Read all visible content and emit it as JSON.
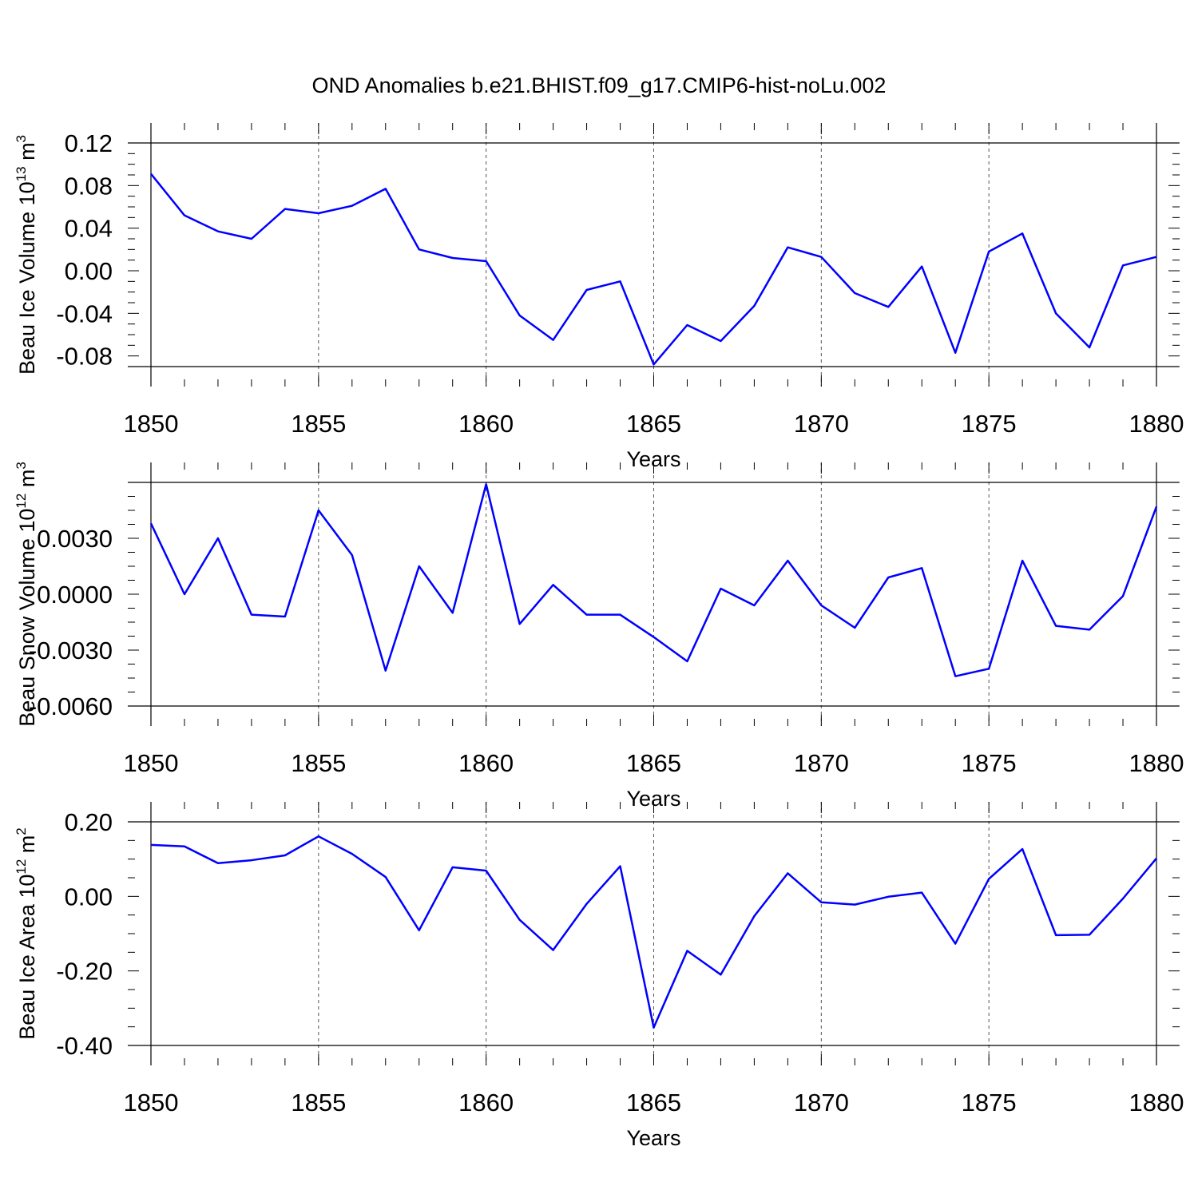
{
  "title": "OND Anomalies b.e21.BHIST.f09_g17.CMIP6-hist-noLu.002",
  "colors": {
    "line": "#0000ff",
    "axis": "#000000",
    "grid": "#555555"
  },
  "chart_data": [
    {
      "type": "line",
      "ylabel_main": "Beau Ice Volume 10",
      "ylabel_exp": "13",
      "ylabel_unit": "m",
      "ylabel_unit_exp": "3",
      "xlabel": "Years",
      "xlim": [
        1850,
        1880
      ],
      "ylim": [
        -0.09,
        0.12
      ],
      "yticks": [
        -0.08,
        -0.04,
        0.0,
        0.04,
        0.08,
        0.12
      ],
      "ytick_labels": [
        "-0.08",
        "-0.04",
        "0.00",
        "0.04",
        "0.08",
        "0.12"
      ],
      "xticks": [
        1850,
        1855,
        1860,
        1865,
        1870,
        1875,
        1880
      ],
      "xtick_labels": [
        "1850",
        "1855",
        "1860",
        "1865",
        "1870",
        "1875",
        "1880"
      ],
      "x": [
        1850,
        1851,
        1852,
        1853,
        1854,
        1855,
        1856,
        1857,
        1858,
        1859,
        1860,
        1861,
        1862,
        1863,
        1864,
        1865,
        1866,
        1867,
        1868,
        1869,
        1870,
        1871,
        1872,
        1873,
        1874,
        1875,
        1876,
        1877,
        1878,
        1879,
        1880
      ],
      "series": [
        {
          "name": "Beau Ice Volume",
          "values": [
            0.091,
            0.052,
            0.037,
            0.03,
            0.058,
            0.054,
            0.061,
            0.077,
            0.02,
            0.012,
            0.009,
            -0.042,
            -0.065,
            -0.018,
            -0.01,
            -0.088,
            -0.051,
            -0.066,
            -0.033,
            0.022,
            0.013,
            -0.021,
            -0.034,
            0.004,
            -0.077,
            0.018,
            0.035,
            -0.04,
            -0.072,
            0.005,
            0.013
          ]
        }
      ]
    },
    {
      "type": "line",
      "ylabel_main": "Beau Snow Volume 10",
      "ylabel_exp": "12",
      "ylabel_unit": "m",
      "ylabel_unit_exp": "3",
      "xlabel": "Years",
      "xlim": [
        1850,
        1880
      ],
      "ylim": [
        -0.006,
        0.006
      ],
      "yticks": [
        -0.006,
        -0.003,
        0.0,
        0.003
      ],
      "ytick_labels": [
        "-0.0060",
        "-0.0030",
        "0.0000",
        "0.0030"
      ],
      "xticks": [
        1850,
        1855,
        1860,
        1865,
        1870,
        1875,
        1880
      ],
      "xtick_labels": [
        "1850",
        "1855",
        "1860",
        "1865",
        "1870",
        "1875",
        "1880"
      ],
      "x": [
        1850,
        1851,
        1852,
        1853,
        1854,
        1855,
        1856,
        1857,
        1858,
        1859,
        1860,
        1861,
        1862,
        1863,
        1864,
        1865,
        1866,
        1867,
        1868,
        1869,
        1870,
        1871,
        1872,
        1873,
        1874,
        1875,
        1876,
        1877,
        1878,
        1879,
        1880
      ],
      "series": [
        {
          "name": "Beau Snow Volume",
          "values": [
            0.0038,
            0.0,
            0.003,
            -0.0011,
            -0.0012,
            0.0045,
            0.0021,
            -0.0041,
            0.0015,
            -0.001,
            0.0059,
            -0.0016,
            0.0005,
            -0.0011,
            -0.0011,
            -0.0023,
            -0.0036,
            0.0003,
            -0.0006,
            0.0018,
            -0.0006,
            -0.0018,
            0.0009,
            0.0014,
            -0.0044,
            -0.004,
            0.0018,
            -0.0017,
            -0.0019,
            -0.0001,
            0.0047
          ]
        }
      ]
    },
    {
      "type": "line",
      "ylabel_main": "Beau Ice Area 10",
      "ylabel_exp": "12",
      "ylabel_unit": "m",
      "ylabel_unit_exp": "2",
      "xlabel": "Years",
      "xlim": [
        1850,
        1880
      ],
      "ylim": [
        -0.4,
        0.2
      ],
      "yticks": [
        -0.4,
        -0.2,
        0.0,
        0.2
      ],
      "ytick_labels": [
        "-0.40",
        "-0.20",
        "0.00",
        "0.20"
      ],
      "xticks": [
        1850,
        1855,
        1860,
        1865,
        1870,
        1875,
        1880
      ],
      "xtick_labels": [
        "1850",
        "1855",
        "1860",
        "1865",
        "1870",
        "1875",
        "1880"
      ],
      "x": [
        1850,
        1851,
        1852,
        1853,
        1854,
        1855,
        1856,
        1857,
        1858,
        1859,
        1860,
        1861,
        1862,
        1863,
        1864,
        1865,
        1866,
        1867,
        1868,
        1869,
        1870,
        1871,
        1872,
        1873,
        1874,
        1875,
        1876,
        1877,
        1878,
        1879,
        1880
      ],
      "series": [
        {
          "name": "Beau Ice Area",
          "values": [
            0.138,
            0.134,
            0.089,
            0.097,
            0.11,
            0.161,
            0.114,
            0.052,
            -0.091,
            0.078,
            0.069,
            -0.063,
            -0.144,
            -0.02,
            0.081,
            -0.352,
            -0.146,
            -0.21,
            -0.053,
            0.062,
            -0.016,
            -0.022,
            -0.001,
            0.01,
            -0.127,
            0.047,
            0.127,
            -0.104,
            -0.103,
            -0.006,
            0.102
          ]
        }
      ]
    }
  ]
}
